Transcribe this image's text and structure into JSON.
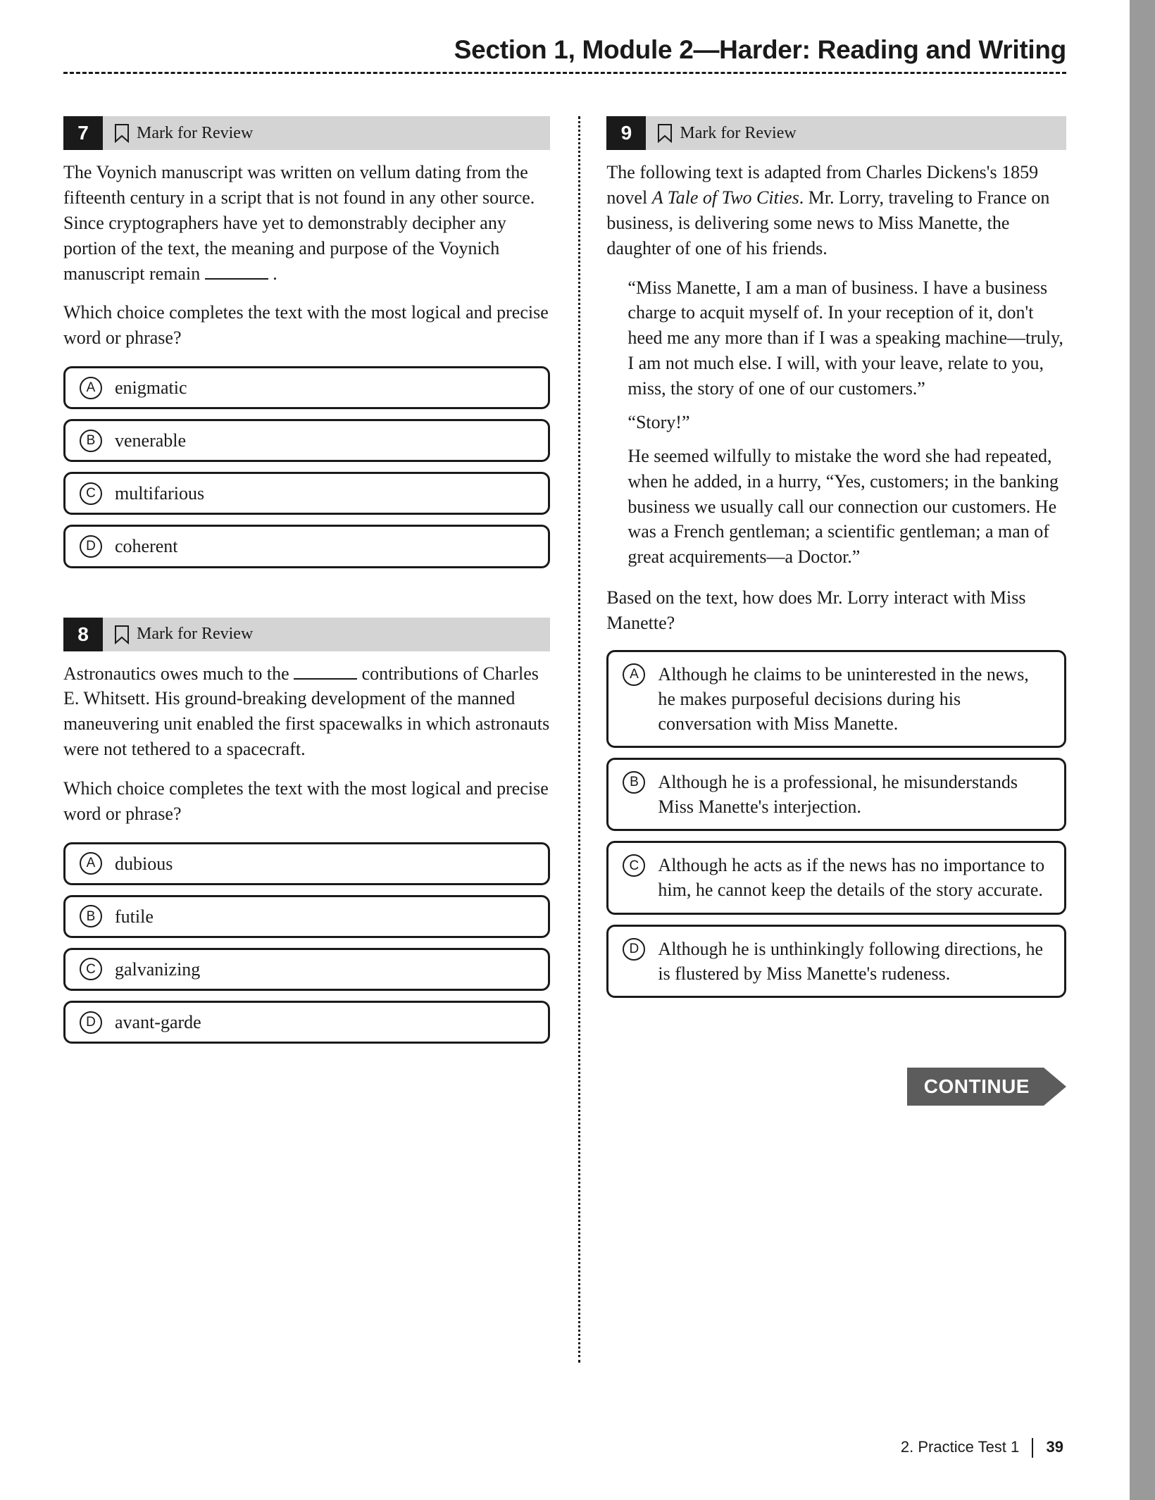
{
  "header": {
    "title": "Section 1, Module 2—Harder: Reading and Writing"
  },
  "mark_label": "Mark for Review",
  "continue_label": "CONTINUE",
  "footer": {
    "section": "2.  Practice Test 1",
    "page": "39"
  },
  "questions": {
    "q7": {
      "number": "7",
      "stem_html": "The Voynich manuscript was written on vellum dating from the fifteenth century in a script that is not found in any other source. Since cryptographers have yet to demonstrably decipher any portion of the text, the meaning and purpose of the Voynich manuscript remain <span class='blank'></span> .",
      "prompt": "Which choice completes the text with the most logical and precise word or phrase?",
      "choices": {
        "A": "enigmatic",
        "B": "venerable",
        "C": "multifarious",
        "D": "coherent"
      }
    },
    "q8": {
      "number": "8",
      "stem_html": "Astronautics owes much to the <span class='blank'></span> contributions of Charles E. Whitsett. His ground-breaking development of the manned maneuvering unit enabled the first spacewalks in which astronauts were not tethered to a spacecraft.",
      "prompt": "Which choice completes the text with the most logical and precise word or phrase?",
      "choices": {
        "A": "dubious",
        "B": "futile",
        "C": "galvanizing",
        "D": "avant-garde"
      }
    },
    "q9": {
      "number": "9",
      "intro_html": "The following text is adapted from Charles Dickens's 1859 novel <em class='title'>A Tale of Two Cities</em>. Mr. Lorry, traveling to France on business, is delivering some news to Miss Manette, the daughter of one of his friends.",
      "passage": {
        "p1": "“Miss Manette, I am a man of business. I have a business charge to acquit myself of. In your reception of it, don't heed me any more than if I was a speaking machine—truly, I am not much else. I will, with your leave, relate to you, miss, the story of one of our customers.”",
        "p2": "“Story!”",
        "p3": "He seemed wilfully to mistake the word she had repeated, when he added, in a hurry, “Yes, customers; in the banking business we usually call our connection our customers. He was a French gentleman; a scientific gentleman; a man of great acquirements—a Doctor.”"
      },
      "prompt": "Based on the text, how does Mr. Lorry interact with Miss Manette?",
      "choices": {
        "A": "Although he claims to be uninterested in the news, he makes purposeful decisions during his conversation with Miss Manette.",
        "B": "Although he is a professional, he misunderstands Miss Manette's interjection.",
        "C": "Although he acts as if the news has no importance to him, he cannot keep the details of the story accurate.",
        "D": "Although he is unthinkingly following directions, he is flustered by Miss Manette's rudeness."
      }
    }
  },
  "colors": {
    "ink": "#1a1a1a",
    "header_bg": "#d4d4d4",
    "continue_bg": "#5c5c5c",
    "edge": "#9a9a9a"
  }
}
